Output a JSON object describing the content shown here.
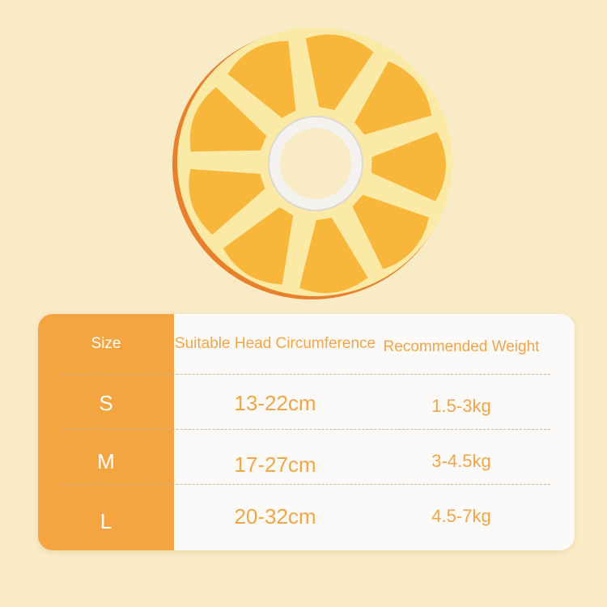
{
  "colors": {
    "background": "#f8ebc6",
    "accent": "#f5a53f",
    "petal": "#f8b63a",
    "pith": "#fbe9a6"
  },
  "product_image": "orange-slice-pet-cone-collar",
  "table": {
    "headers": {
      "size": "Size",
      "head": "Suitable Head Circumference",
      "weight": "Recommended Weight"
    },
    "rows": [
      {
        "size": "S",
        "head": "13-22cm",
        "weight": "1.5-3kg"
      },
      {
        "size": "M",
        "head": "17-27cm",
        "weight": "3-4.5kg"
      },
      {
        "size": "L",
        "head": "20-32cm",
        "weight": "4.5-7kg"
      }
    ]
  }
}
